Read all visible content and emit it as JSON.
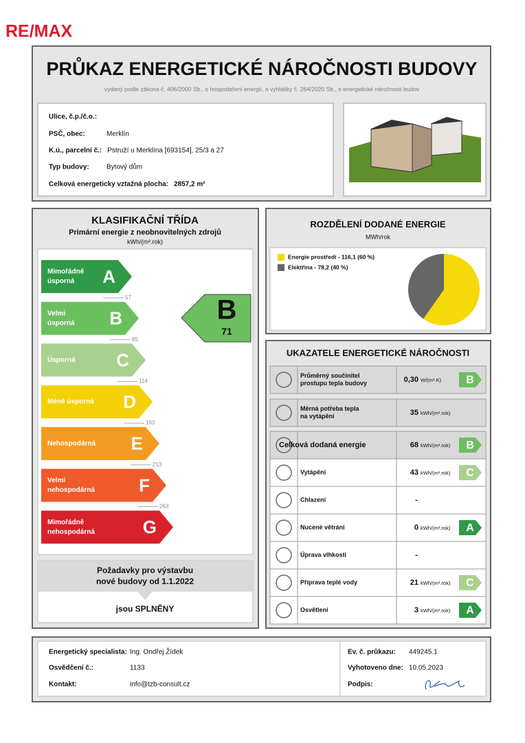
{
  "logo": "RE/MAX",
  "header": {
    "title": "PRŮKAZ ENERGETICKÉ NÁROČNOSTI BUDOVY",
    "subtitle": "vydaný podle zákona č. 406/2000 Sb., o hospodaření energií, a vyhlášky č. 264/2020 Sb., o energetické náročnosti budov"
  },
  "building": {
    "fields": [
      {
        "label": "Ulice, č.p./č.o.:"
      },
      {
        "label": "PSČ, obec:",
        "value": "Merklín"
      },
      {
        "label": "K.ú., parcelní č.:",
        "value": "Pstruží u Merklína [693154], 25/3 a 27"
      },
      {
        "label": "Typ budovy:",
        "value": "Bytový dům"
      },
      {
        "label": "Celková energeticky vztažná plocha:",
        "value": "2857,2 m²"
      }
    ]
  },
  "classification": {
    "title": "KLASIFIKAČNÍ TŘÍDA",
    "subtitle": "Primární energie z neobnovitelných zdrojů",
    "unit": "kWh/(m².rok)",
    "classes": [
      {
        "letter": "A",
        "name": [
          "Mimořádně",
          "úsporná"
        ],
        "color": "#2f9a47",
        "limit": 57
      },
      {
        "letter": "B",
        "name": [
          "Velmi",
          "úsporná"
        ],
        "color": "#6cbf5f",
        "limit": 85
      },
      {
        "letter": "C",
        "name": [
          "Úsporná"
        ],
        "color": "#a9d18e",
        "limit": 114
      },
      {
        "letter": "D",
        "name": [
          "Méně úsporná"
        ],
        "color": "#f4d006",
        "limit": 163
      },
      {
        "letter": "E",
        "name": [
          "Nehospodárná"
        ],
        "color": "#f39a22",
        "limit": 213
      },
      {
        "letter": "F",
        "name": [
          "Velmi",
          "nehospodárná"
        ],
        "color": "#ee5a2a",
        "limit": 263
      },
      {
        "letter": "G",
        "name": [
          "Mimořádně",
          "nehospodárná"
        ],
        "color": "#d7212b"
      }
    ],
    "rating": {
      "letter": "B",
      "value": 71
    },
    "requirements": {
      "title": [
        "Požadavky pro výstavbu",
        "nové budovy od 1.1.2022"
      ],
      "result": "jsou SPLNĚNY"
    }
  },
  "energy_split": {
    "title": "ROZDĚLENÍ DODANÉ ENERGIE",
    "unit": "MWh/rok",
    "items": [
      {
        "label": "Energie prostředí - 116,1 (60 %)",
        "value": 116.1,
        "color": "#f5d90a"
      },
      {
        "label": "Elektřina - 78,2 (40 %)",
        "value": 78.2,
        "color": "#666666"
      }
    ]
  },
  "indicators": {
    "title": "UKAZATELE ENERGETICKÉ NÁROČNOSTI",
    "rows": [
      {
        "label": [
          "Průměrný součinitel",
          "prostupu tepla budovy"
        ],
        "value": "0,30",
        "unit": "W/(m².K)",
        "class": "B"
      },
      {
        "label": [
          "Měrná potřeba tepla",
          "na vytápění"
        ],
        "value": "35",
        "unit": "kWh/(m².rok)"
      },
      {
        "label": [
          "Celková dodaná energie"
        ],
        "value": "68",
        "unit": "kWh/(m².rok)",
        "class": "B"
      },
      {
        "label": [
          "Vytápění"
        ],
        "value": "43",
        "unit": "kWh/(m².rok)",
        "class": "C"
      },
      {
        "label": [
          "Chlazení"
        ],
        "value": "-"
      },
      {
        "label": [
          "Nucené větrání"
        ],
        "value": "0",
        "unit": "kWh/(m².rok)",
        "class": "A"
      },
      {
        "label": [
          "Úprava vlhkosti"
        ],
        "value": "-"
      },
      {
        "label": [
          "Příprava teplé vody"
        ],
        "value": "21",
        "unit": "kWh/(m².rok)",
        "class": "C"
      },
      {
        "label": [
          "Osvětlení"
        ],
        "value": "3",
        "unit": "kWh/(m².rok)",
        "class": "A"
      }
    ]
  },
  "footer": {
    "left": [
      {
        "label": "Energetický specialista:",
        "value": "Ing. Ondřej Žídek"
      },
      {
        "label": "Osvědčení č.:",
        "value": "1133"
      },
      {
        "label": "Kontakt:",
        "value": "info@tzb-consult.cz"
      }
    ],
    "right": [
      {
        "label": "Ev. č. průkazu:",
        "value": "449245.1"
      },
      {
        "label": "Vyhotoveno dne:",
        "value": "10.05.2023"
      },
      {
        "label": "Podpis:"
      }
    ]
  }
}
